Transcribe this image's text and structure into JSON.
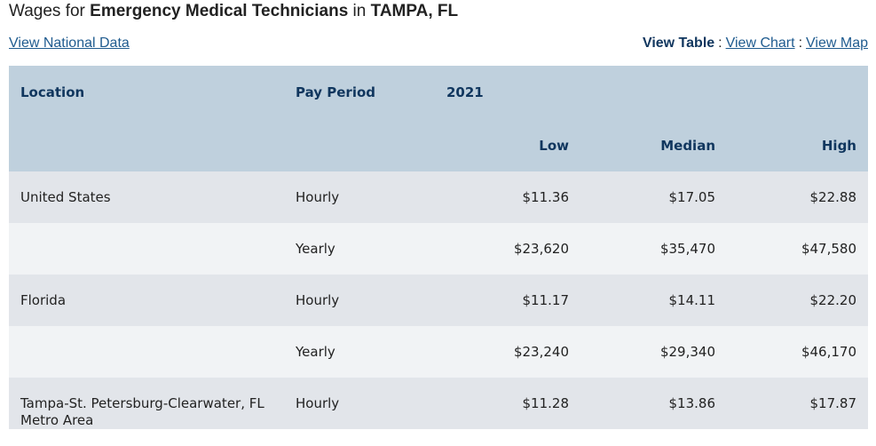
{
  "title": {
    "prefix": "Wages for ",
    "occupation": "Emergency Medical Technicians",
    "middle": " in ",
    "area": "TAMPA, FL"
  },
  "links": {
    "national": "View National Data",
    "view_table": "View Table",
    "separator": ":",
    "view_chart": "View Chart",
    "view_map": "View Map"
  },
  "table": {
    "headers": {
      "location": "Location",
      "pay_period": "Pay Period",
      "year": "2021",
      "low": "Low",
      "median": "Median",
      "high": "High"
    },
    "rows": [
      {
        "location": "United States",
        "period": "Hourly",
        "low": "$11.36",
        "median": "$17.05",
        "high": "$22.88"
      },
      {
        "location": "",
        "period": "Yearly",
        "low": "$23,620",
        "median": "$35,470",
        "high": "$47,580"
      },
      {
        "location": "Florida",
        "period": "Hourly",
        "low": "$11.17",
        "median": "$14.11",
        "high": "$22.20"
      },
      {
        "location": "",
        "period": "Yearly",
        "low": "$23,240",
        "median": "$29,340",
        "high": "$46,170"
      },
      {
        "location": "Tampa-St. Petersburg-Clearwater, FL Metro Area",
        "period": "Hourly",
        "low": "$11.28",
        "median": "$13.86",
        "high": "$17.87"
      }
    ]
  },
  "colors": {
    "header_bg": "#bfd0dd",
    "header_text": "#10365e",
    "row_dark": "#e2e5ea",
    "row_light": "#f1f3f5",
    "link": "#1f5b8f"
  }
}
